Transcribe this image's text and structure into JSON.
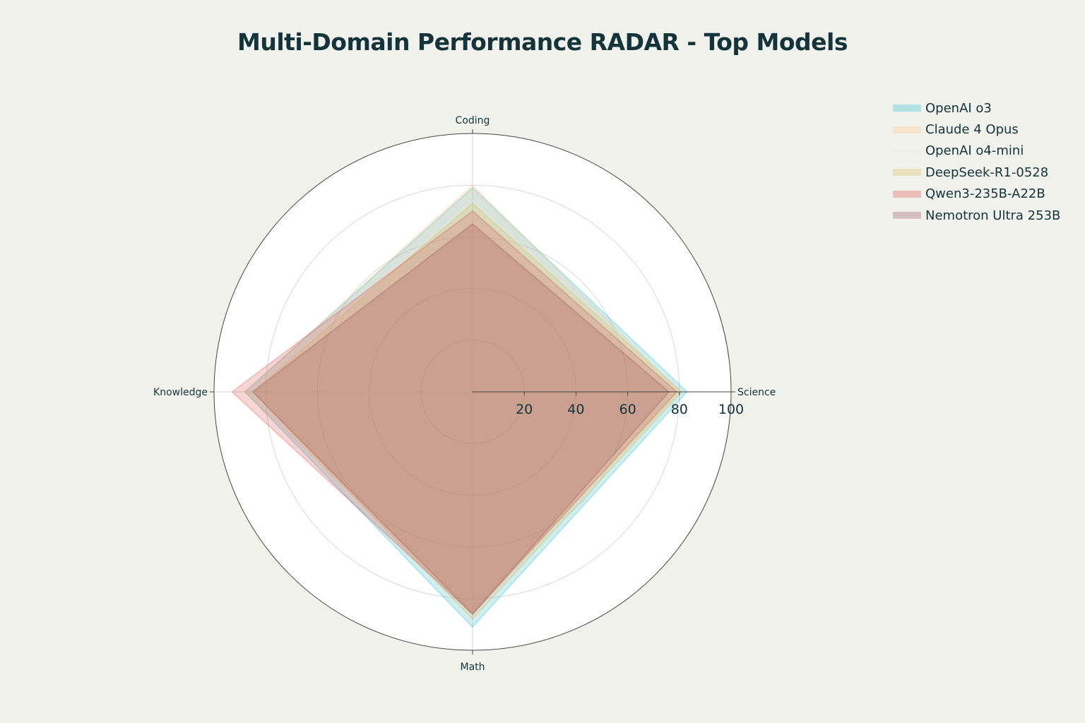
{
  "chart_data": {
    "type": "radar",
    "title": "Multi-Domain Performance RADAR - Top Models",
    "axes": [
      "Science",
      "Coding",
      "Knowledge",
      "Math"
    ],
    "radial_range": [
      0,
      100
    ],
    "radial_ticks": [
      "20",
      "40",
      "60",
      "80",
      "100"
    ],
    "series": [
      {
        "name": "OpenAI o3",
        "color": "#1fb8cd",
        "values": [
          83,
          79,
          88,
          91
        ]
      },
      {
        "name": "Claude 4 Opus",
        "color": "#ffc185",
        "values": [
          80,
          80,
          88,
          85
        ]
      },
      {
        "name": "OpenAI o4-mini",
        "color": "#eceae4",
        "values": [
          81,
          74,
          85,
          89
        ]
      },
      {
        "name": "DeepSeek-R1-0528",
        "color": "#d2ba4c",
        "values": [
          81,
          73,
          85,
          88
        ]
      },
      {
        "name": "Qwen3-235B-A22B",
        "color": "#db4545",
        "values": [
          79,
          70,
          93,
          86
        ]
      },
      {
        "name": "Nemotron Ultra 253B",
        "color": "#944454",
        "values": [
          76,
          65,
          85,
          86
        ]
      }
    ]
  }
}
